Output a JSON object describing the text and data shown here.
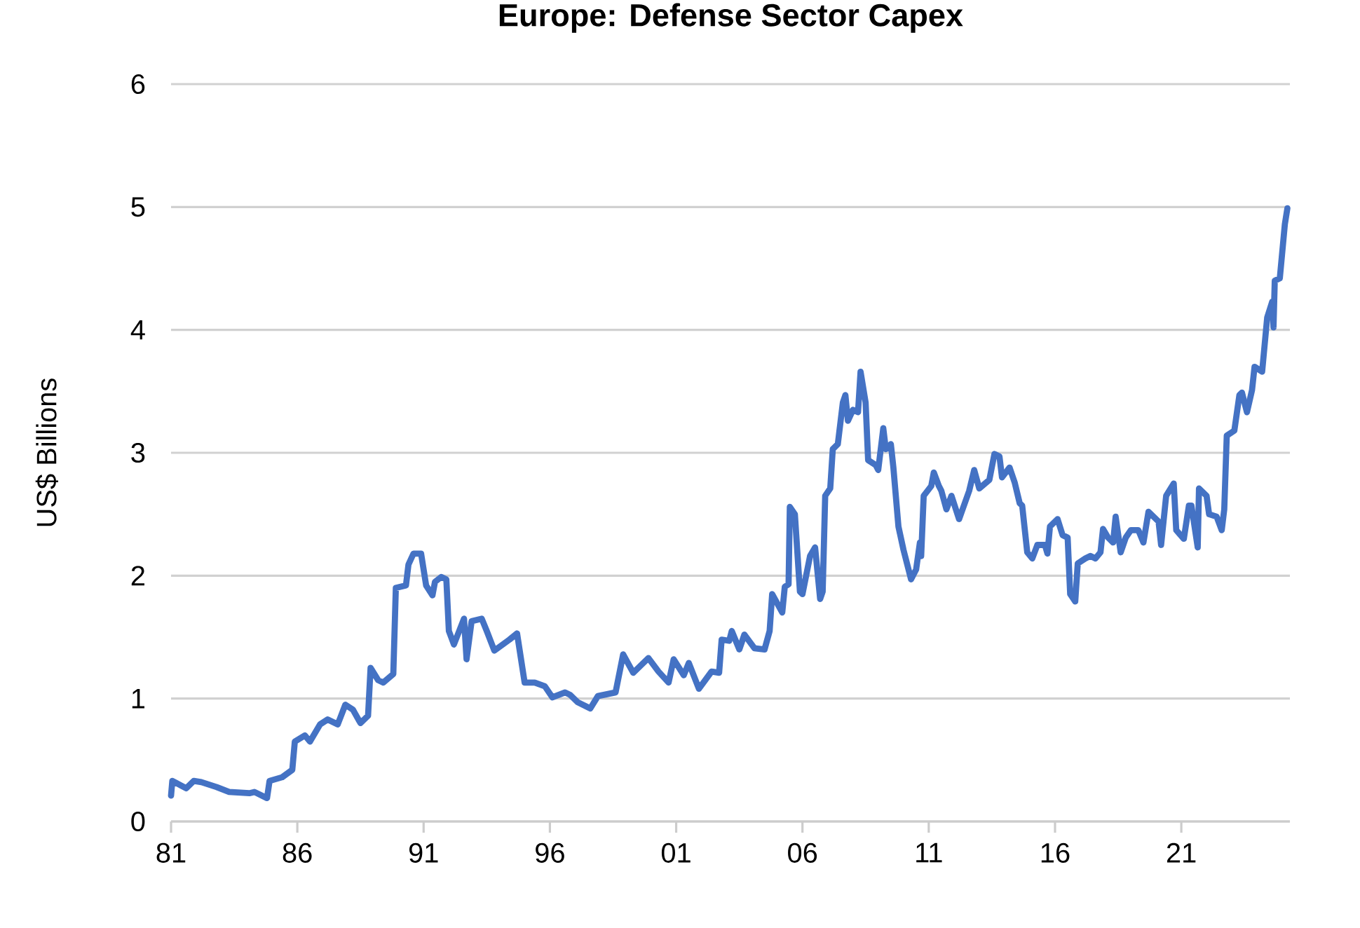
{
  "chart_data": {
    "type": "line",
    "title": "Europe: Defense Sector Capex",
    "ylabel": "US$ Billions",
    "xlim": [
      1981,
      2025.3
    ],
    "xticks": [
      {
        "value": 1981,
        "label": "81"
      },
      {
        "value": 1986,
        "label": "86"
      },
      {
        "value": 1991,
        "label": "91"
      },
      {
        "value": 1996,
        "label": "96"
      },
      {
        "value": 2001,
        "label": "01"
      },
      {
        "value": 2006,
        "label": "06"
      },
      {
        "value": 2011,
        "label": "11"
      },
      {
        "value": 2016,
        "label": "16"
      },
      {
        "value": 2021,
        "label": "21"
      }
    ],
    "ylim": [
      0,
      6
    ],
    "yticks": [
      0,
      1,
      2,
      3,
      4,
      5,
      6
    ],
    "grid": "y",
    "line_style": "solid",
    "x": [
      1981.0,
      1981.05,
      1981.6,
      1981.9,
      1982.2,
      1982.8,
      1983.3,
      1984.1,
      1984.3,
      1984.8,
      1984.9,
      1985.4,
      1985.8,
      1985.9,
      1986.3,
      1986.5,
      1986.7,
      1986.9,
      1987.2,
      1987.6,
      1987.9,
      1988.2,
      1988.5,
      1988.8,
      1988.9,
      1989.2,
      1989.4,
      1989.8,
      1989.9,
      1990.3,
      1990.4,
      1990.6,
      1990.9,
      1991.1,
      1991.35,
      1991.45,
      1991.7,
      1991.9,
      1992.0,
      1992.2,
      1992.6,
      1992.7,
      1992.9,
      1993.3,
      1993.5,
      1993.8,
      1994.4,
      1994.7,
      1995.0,
      1995.4,
      1995.8,
      1996.1,
      1996.6,
      1996.8,
      1997.1,
      1997.6,
      1997.9,
      1998.6,
      1998.9,
      1999.3,
      1999.9,
      2000.3,
      2000.7,
      2000.9,
      2001.3,
      2001.5,
      2001.9,
      2002.4,
      2002.7,
      2002.8,
      2003.1,
      2003.2,
      2003.5,
      2003.7,
      2004.1,
      2004.5,
      2004.7,
      2004.8,
      2005.2,
      2005.3,
      2005.45,
      2005.5,
      2005.7,
      2005.9,
      2006.0,
      2006.3,
      2006.5,
      2006.7,
      2006.8,
      2006.9,
      2007.1,
      2007.2,
      2007.4,
      2007.6,
      2007.7,
      2007.8,
      2008.0,
      2008.2,
      2008.3,
      2008.5,
      2008.6,
      2008.9,
      2009.0,
      2009.2,
      2009.3,
      2009.5,
      2009.6,
      2009.8,
      2010.0,
      2010.3,
      2010.5,
      2010.65,
      2010.7,
      2010.8,
      2011.1,
      2011.2,
      2011.4,
      2011.5,
      2011.7,
      2011.9,
      2012.2,
      2012.6,
      2012.8,
      2013.0,
      2013.4,
      2013.6,
      2013.8,
      2013.9,
      2014.2,
      2014.4,
      2014.6,
      2014.7,
      2014.9,
      2015.1,
      2015.3,
      2015.6,
      2015.7,
      2015.8,
      2016.1,
      2016.3,
      2016.5,
      2016.6,
      2016.8,
      2016.9,
      2017.2,
      2017.4,
      2017.6,
      2017.8,
      2017.9,
      2018.1,
      2018.3,
      2018.4,
      2018.6,
      2018.8,
      2019.0,
      2019.3,
      2019.5,
      2019.7,
      2020.0,
      2020.1,
      2020.2,
      2020.4,
      2020.7,
      2020.8,
      2021.1,
      2021.3,
      2021.4,
      2021.65,
      2021.7,
      2022.0,
      2022.1,
      2022.4,
      2022.6,
      2022.7,
      2022.8,
      2023.1,
      2023.3,
      2023.4,
      2023.6,
      2023.8,
      2023.9,
      2024.2,
      2024.4,
      2024.6,
      2024.65,
      2024.7,
      2024.9,
      2025.1,
      2025.2
    ],
    "series": [
      {
        "color": "#4472c4",
        "values": [
          0.21,
          0.33,
          0.27,
          0.33,
          0.32,
          0.28,
          0.24,
          0.23,
          0.24,
          0.19,
          0.33,
          0.36,
          0.42,
          0.65,
          0.7,
          0.65,
          0.72,
          0.79,
          0.83,
          0.79,
          0.95,
          0.91,
          0.8,
          0.86,
          1.25,
          1.15,
          1.13,
          1.2,
          1.9,
          1.92,
          2.09,
          2.18,
          2.18,
          1.92,
          1.84,
          1.95,
          1.99,
          1.97,
          1.55,
          1.44,
          1.65,
          1.32,
          1.63,
          1.65,
          1.55,
          1.39,
          1.48,
          1.53,
          1.13,
          1.13,
          1.1,
          1.01,
          1.05,
          1.03,
          0.97,
          0.92,
          1.02,
          1.05,
          1.36,
          1.21,
          1.33,
          1.22,
          1.13,
          1.32,
          1.19,
          1.29,
          1.08,
          1.22,
          1.21,
          1.48,
          1.47,
          1.55,
          1.4,
          1.52,
          1.41,
          1.4,
          1.55,
          1.85,
          1.7,
          1.91,
          1.93,
          2.56,
          2.5,
          1.87,
          1.85,
          2.16,
          2.23,
          1.81,
          1.87,
          2.65,
          2.71,
          3.03,
          3.07,
          3.41,
          3.47,
          3.26,
          3.35,
          3.33,
          3.66,
          3.41,
          2.94,
          2.9,
          2.86,
          3.2,
          3.03,
          3.07,
          2.88,
          2.4,
          2.21,
          1.97,
          2.05,
          2.27,
          2.16,
          2.65,
          2.73,
          2.84,
          2.73,
          2.69,
          2.54,
          2.65,
          2.46,
          2.69,
          2.86,
          2.71,
          2.78,
          2.99,
          2.97,
          2.8,
          2.88,
          2.76,
          2.59,
          2.57,
          2.19,
          2.14,
          2.25,
          2.25,
          2.18,
          2.4,
          2.46,
          2.33,
          2.31,
          1.85,
          1.79,
          2.1,
          2.14,
          2.16,
          2.14,
          2.19,
          2.38,
          2.31,
          2.27,
          2.48,
          2.19,
          2.31,
          2.37,
          2.37,
          2.27,
          2.52,
          2.46,
          2.44,
          2.25,
          2.65,
          2.75,
          2.37,
          2.3,
          2.57,
          2.57,
          2.23,
          2.71,
          2.65,
          2.5,
          2.48,
          2.37,
          2.54,
          3.14,
          3.18,
          3.47,
          3.49,
          3.33,
          3.51,
          3.7,
          3.66,
          4.1,
          4.23,
          4.02,
          4.4,
          4.42,
          4.86,
          4.99
        ]
      }
    ]
  }
}
